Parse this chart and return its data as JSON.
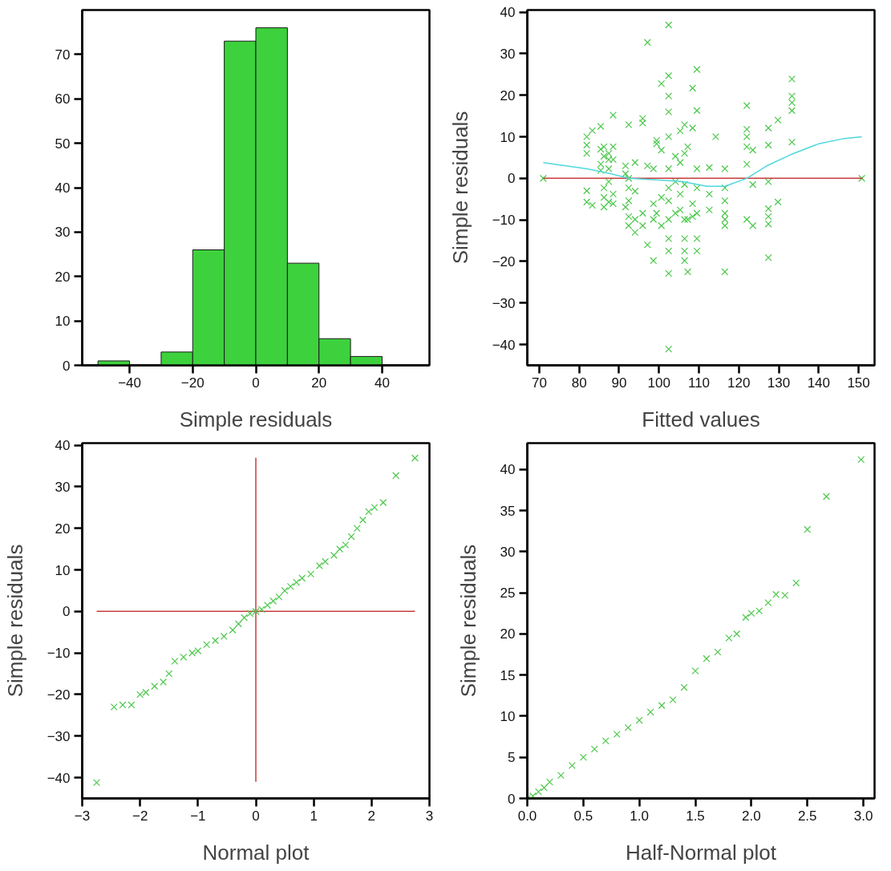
{
  "chart_data": [
    {
      "type": "histogram",
      "xlabel": "Simple residuals",
      "bins": [
        -50,
        -40,
        -30,
        -20,
        -10,
        0,
        10,
        20,
        30,
        40
      ],
      "values": [
        1,
        0,
        3,
        26,
        73,
        76,
        23,
        6,
        2
      ],
      "color": "#3dd13d",
      "xlim": [
        -55,
        55
      ],
      "ylim": [
        0,
        80
      ],
      "xticks": [
        -40,
        -20,
        0,
        20,
        40
      ],
      "yticks": [
        0,
        10,
        20,
        30,
        40,
        50,
        60,
        70
      ],
      "grid": false
    },
    {
      "type": "scatter",
      "xlabel": "Fitted values",
      "ylabel": "Simple residuals",
      "xlim": [
        67,
        154
      ],
      "ylim": [
        -45,
        40.5
      ],
      "xticks": [
        70,
        80,
        90,
        100,
        110,
        120,
        130,
        140,
        150
      ],
      "yticks": [
        -40,
        -30,
        -20,
        -10,
        0,
        10,
        20,
        30,
        40
      ],
      "grid": false,
      "series": [
        {
          "type": "scatter",
          "marker": "cross",
          "color": "#4cc84c",
          "x": [
            71,
            150.8,
            81.9,
            81.9,
            81.9,
            81.9,
            81.9,
            83.3,
            83.3,
            85.4,
            85.4,
            85.4,
            85.4,
            86.2,
            86.2,
            86.2,
            86.2,
            86.2,
            87.4,
            87.4,
            87.4,
            87.4,
            87.4,
            88.5,
            88.5,
            88.5,
            88.5,
            88.5,
            92.4,
            92.4,
            92.4,
            92.4,
            92.4,
            92.4,
            91.6,
            91.6,
            91.6,
            94,
            94,
            94,
            94,
            95.9,
            95.9,
            95.9,
            95.9,
            97.1,
            97.1,
            97.1,
            98.6,
            98.6,
            98.6,
            98.6,
            99.4,
            99.4,
            99.4,
            100.6,
            100.6,
            100.6,
            100.6,
            102.4,
            102.4,
            102.4,
            102.4,
            102.4,
            102.4,
            102.4,
            102.4,
            102.4,
            102.4,
            102.4,
            102.4,
            102.4,
            104.1,
            104.1,
            104.1,
            105.3,
            105.3,
            105.3,
            105.3,
            106.4,
            106.4,
            106.4,
            106.4,
            106.4,
            106.4,
            106.4,
            107.2,
            107.2,
            107.2,
            108.4,
            108.4,
            108.4,
            108.4,
            109.5,
            109.5,
            109.5,
            109.5,
            109.5,
            109.5,
            109.5,
            112.6,
            112.6,
            112.6,
            114.2,
            116.5,
            116.5,
            116.5,
            116.5,
            116.5,
            116.5,
            116.5,
            122,
            122,
            122,
            122,
            122,
            122,
            123.5,
            123.5,
            123.5,
            127.4,
            127.4,
            127.4,
            127.4,
            127.4,
            127.4,
            127.4,
            129.8,
            129.8,
            133.3,
            133.3,
            133.3,
            133.3,
            133.3
          ],
          "values": [
            0,
            0,
            10,
            8,
            6,
            -3,
            -5.7,
            11.5,
            -6.5,
            12.5,
            3.4,
            1.9,
            7,
            -2.3,
            -4.6,
            -6.9,
            5.3,
            7.6,
            2.3,
            -0.8,
            -5.7,
            6,
            4.5,
            15.2,
            7.6,
            4.5,
            -3.8,
            -6.1,
            12.9,
            0,
            -2.3,
            -5.4,
            -9.2,
            -11.4,
            3,
            1.1,
            -6.9,
            3.8,
            -3.1,
            -9.9,
            -13,
            14.4,
            13.3,
            -8.4,
            -11.4,
            32.7,
            3,
            -16,
            2.3,
            -6.1,
            -9.9,
            -19.8,
            9.1,
            8.3,
            -8.4,
            22.8,
            6.8,
            -4.6,
            -11.4,
            36.9,
            24.7,
            19.8,
            16,
            10,
            2.3,
            -2.3,
            -5.4,
            -9.9,
            -14.5,
            -17.5,
            -22.9,
            -41.1,
            5.3,
            -0.8,
            -8.4,
            11.4,
            3.8,
            -3.8,
            -7.6,
            12.9,
            6,
            -1.5,
            -9.9,
            -14.5,
            -17.5,
            -19.8,
            -22.5,
            -9.9,
            7.6,
            21.7,
            12.1,
            -6.1,
            -9.2,
            26.2,
            16.3,
            2.3,
            -2.3,
            -8.4,
            -14.5,
            -17.5,
            2.6,
            -3.8,
            -7.6,
            10,
            2.3,
            -2.3,
            -5.4,
            -8.4,
            -9.9,
            -11.4,
            -22.5,
            17.5,
            11.8,
            10,
            7.6,
            3.4,
            -9.9,
            6.8,
            -1.5,
            -11.4,
            12.1,
            8,
            -0.8,
            -7.3,
            -9.2,
            -11,
            -19.1,
            14,
            -5.7,
            23.9,
            19.8,
            18.2,
            16.3,
            8.7
          ]
        },
        {
          "type": "line",
          "marker": "none",
          "color": "#c83c3c",
          "x": [
            71,
            151
          ],
          "values": [
            0,
            0
          ]
        },
        {
          "type": "line",
          "marker": "none",
          "color": "#4fd8dc",
          "x": [
            71,
            82,
            88,
            92.4,
            100,
            106,
            112,
            116.5,
            122,
            127,
            133,
            140,
            146,
            150.8
          ],
          "values": [
            3.8,
            2.3,
            1.1,
            0,
            -0.4,
            -0.8,
            -1.9,
            -1.9,
            0,
            3,
            5.7,
            8.3,
            9.5,
            10
          ]
        }
      ]
    },
    {
      "type": "scatter",
      "xlabel": "Normal plot",
      "ylabel": "Simple residuals",
      "xlim": [
        -3,
        3
      ],
      "ylim": [
        -45,
        40.5
      ],
      "xticks": [
        -3,
        -2,
        -1,
        0,
        1,
        2,
        3
      ],
      "yticks": [
        -40,
        -30,
        -20,
        -10,
        0,
        10,
        20,
        30,
        40
      ],
      "grid": false,
      "series": [
        {
          "type": "line",
          "marker": "none",
          "color": "#c83c3c",
          "x": [
            -2.75,
            2.75
          ],
          "values": [
            0,
            0
          ]
        },
        {
          "type": "line",
          "marker": "none",
          "color": "#c83c3c",
          "x": [
            0,
            0
          ],
          "values": [
            -41,
            37
          ]
        },
        {
          "type": "scatter",
          "marker": "cross",
          "color": "#4cc84c",
          "x": [
            -2.75,
            -2.45,
            -2.3,
            -2.15,
            -2,
            -1.9,
            -1.75,
            -1.6,
            -1.5,
            -1.4,
            -1.25,
            -1.1,
            -1,
            -0.85,
            -0.7,
            -0.55,
            -0.4,
            -0.3,
            -0.2,
            -0.1,
            0,
            0.1,
            0.2,
            0.3,
            0.4,
            0.5,
            0.6,
            0.7,
            0.8,
            0.95,
            1.1,
            1.2,
            1.35,
            1.45,
            1.55,
            1.65,
            1.75,
            1.85,
            1.95,
            2.05,
            2.2,
            2.42,
            2.75
          ],
          "values": [
            -41.2,
            -23,
            -22.5,
            -22.5,
            -20,
            -19.5,
            -18,
            -17,
            -15,
            -12,
            -11,
            -10,
            -9.5,
            -8,
            -7,
            -6,
            -4.5,
            -3,
            -1.5,
            -0.5,
            0,
            0.5,
            1.5,
            2.5,
            3.5,
            5,
            6,
            7,
            8,
            9,
            11,
            12,
            13.5,
            15,
            16,
            18,
            20,
            22,
            24,
            25,
            26.2,
            32.7,
            36.9
          ]
        }
      ]
    },
    {
      "type": "scatter",
      "xlabel": "Half-Normal plot",
      "ylabel": "Simple residuals",
      "xlim": [
        0,
        3.1
      ],
      "ylim": [
        0,
        43.2
      ],
      "xticks": [
        {
          "value": 0,
          "label": "0.0"
        },
        0.5,
        {
          "value": 1,
          "label": "1.0"
        },
        1.5,
        {
          "value": 2,
          "label": "2.0"
        },
        2.5,
        {
          "value": 3,
          "label": "3.0"
        }
      ],
      "yticks": [
        0,
        5,
        10,
        15,
        20,
        25,
        30,
        35,
        40
      ],
      "grid": false,
      "series": [
        {
          "type": "scatter",
          "marker": "cross",
          "color": "#4cc84c",
          "x": [
            0,
            0.05,
            0.1,
            0.15,
            0.2,
            0.3,
            0.4,
            0.5,
            0.6,
            0.7,
            0.8,
            0.9,
            1.0,
            1.1,
            1.2,
            1.3,
            1.4,
            1.5,
            1.6,
            1.7,
            1.8,
            1.87,
            1.95,
            2.0,
            2.07,
            2.15,
            2.22,
            2.3,
            2.4,
            2.5,
            2.67,
            2.98
          ],
          "values": [
            0,
            0.3,
            0.8,
            1.3,
            2,
            2.8,
            4,
            5,
            6,
            7,
            7.8,
            8.6,
            9.5,
            10.5,
            11.3,
            12,
            13.5,
            15.5,
            17,
            17.8,
            19.5,
            20,
            22,
            22.5,
            22.8,
            23.8,
            24.8,
            24.7,
            26.2,
            32.7,
            36.7,
            41.2
          ]
        }
      ]
    }
  ]
}
